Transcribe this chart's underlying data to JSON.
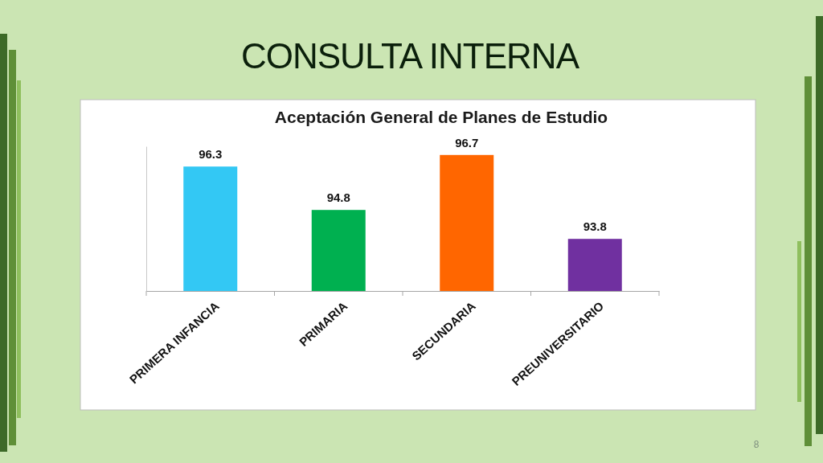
{
  "chart_data": {
    "type": "bar",
    "title": "CONSULTA INTERNA",
    "subtitle": "Aceptación General de Planes de Estudio",
    "categories": [
      "PRIMERA INFANCIA",
      "PRIMARIA",
      "SECUNDARIA",
      "PREUNIVERSITARIO"
    ],
    "values": [
      96.3,
      94.8,
      96.7,
      93.8
    ],
    "colors": [
      "#33c8f4",
      "#00b050",
      "#ff6600",
      "#7030a0"
    ],
    "ylim": [
      92,
      97
    ],
    "tick_labels": "x",
    "data_labels": true,
    "annotations": [
      "8"
    ]
  }
}
